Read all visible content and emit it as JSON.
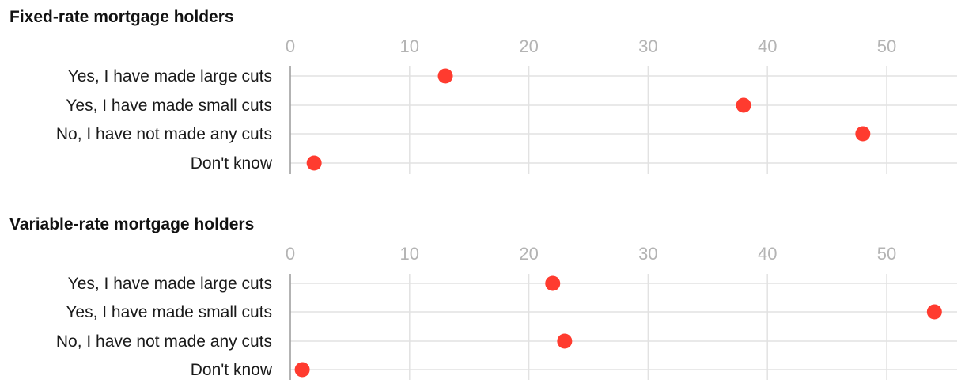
{
  "colors": {
    "dot": "#ff3b2f"
  },
  "chart_data": [
    {
      "type": "scatter",
      "title": "Fixed-rate mortgage holders",
      "categories": [
        "Yes, I have made large cuts",
        "Yes, I have made small cuts",
        "No, I have not made any cuts",
        "Don't know"
      ],
      "values": [
        13,
        38,
        48,
        2
      ],
      "xticks": [
        0,
        10,
        20,
        30,
        40,
        50
      ],
      "xlim": [
        0,
        55
      ],
      "grid": true
    },
    {
      "type": "scatter",
      "title": "Variable-rate mortgage holders",
      "categories": [
        "Yes, I have made large cuts",
        "Yes, I have made small cuts",
        "No, I have not made any cuts",
        "Don't know"
      ],
      "values": [
        22,
        54,
        23,
        1
      ],
      "xticks": [
        0,
        10,
        20,
        30,
        40,
        50
      ],
      "xlim": [
        0,
        55
      ],
      "grid": true
    }
  ]
}
